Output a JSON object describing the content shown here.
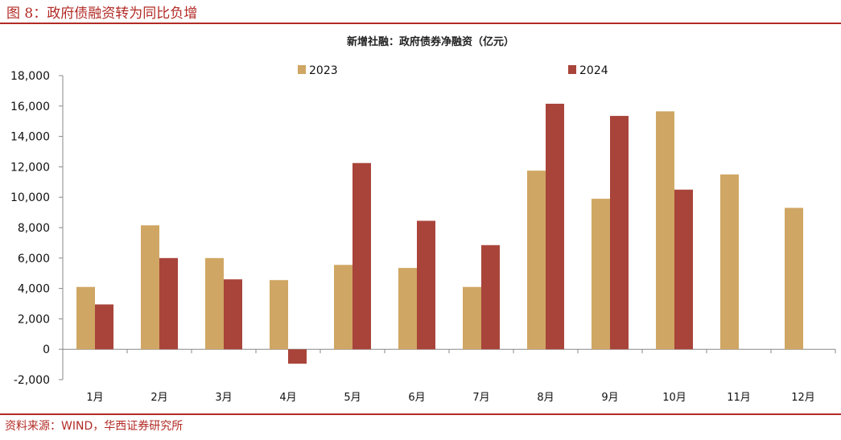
{
  "figure": {
    "title": "图 8：政府债融资转为同比负增",
    "source": "资料来源：WIND，华西证券研究所"
  },
  "chart_data": {
    "type": "bar",
    "title": "新增社融：政府债券净融资（亿元）",
    "xlabel": "",
    "ylabel": "",
    "categories": [
      "1月",
      "2月",
      "3月",
      "4月",
      "5月",
      "6月",
      "7月",
      "8月",
      "9月",
      "10月",
      "11月",
      "12月"
    ],
    "series": [
      {
        "name": "2023",
        "color": "#cfa663",
        "values": [
          4100,
          8150,
          6000,
          4550,
          5550,
          5350,
          4100,
          11750,
          9900,
          15650,
          11500,
          9300
        ]
      },
      {
        "name": "2024",
        "color": "#a9443a",
        "values": [
          2950,
          6000,
          4600,
          -950,
          12250,
          8450,
          6850,
          16150,
          15350,
          10500,
          null,
          null
        ]
      }
    ],
    "ylim": [
      -2000,
      18000
    ],
    "yticks": [
      -2000,
      0,
      2000,
      4000,
      6000,
      8000,
      10000,
      12000,
      14000,
      16000,
      18000
    ],
    "ytick_labels": [
      "-2,000",
      "0",
      "2,000",
      "4,000",
      "6,000",
      "8,000",
      "10,000",
      "12,000",
      "14,000",
      "16,000",
      "18,000"
    ],
    "grid": false,
    "legend": "top"
  }
}
